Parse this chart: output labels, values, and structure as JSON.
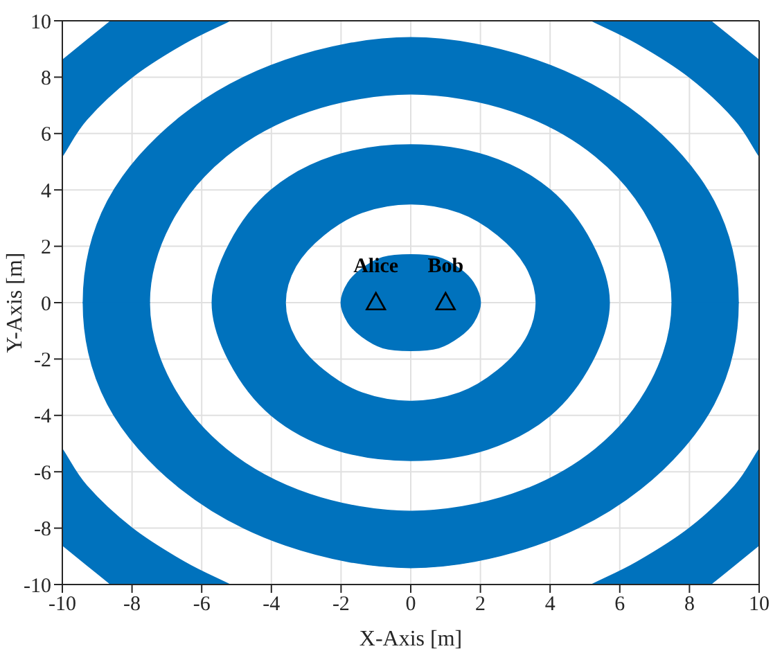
{
  "chart_data": {
    "type": "area",
    "xlabel": "X-Axis [m]",
    "ylabel": "Y-Axis [m]",
    "xlim": [
      -10,
      10
    ],
    "ylim": [
      -10,
      10
    ],
    "xticks": [
      -10,
      -8,
      -6,
      -4,
      -2,
      0,
      2,
      4,
      6,
      8,
      10
    ],
    "yticks": [
      -10,
      -8,
      -6,
      -4,
      -2,
      0,
      2,
      4,
      6,
      8,
      10
    ],
    "grid": true,
    "annotations": [
      {
        "text": "Alice",
        "x": -1,
        "y": 0
      },
      {
        "text": "Bob",
        "x": 1,
        "y": 0
      }
    ],
    "series": [
      {
        "color": "#0072bd",
        "x": [
          5.7,
          5.2,
          4,
          2.2,
          0,
          -2.2,
          -4,
          -5.2,
          -5.7,
          -5.2,
          -4,
          -2.2,
          0,
          2.2,
          4,
          5.2,
          null,
          3.6,
          3.3,
          2.5,
          1.4,
          0,
          -1.4,
          -2.5,
          -3.3,
          -3.6,
          -3.3,
          -2.5,
          -1.4,
          0,
          1.4,
          2.5,
          3.3
        ],
        "values": [
          0,
          2.1,
          4,
          5.2,
          5.6,
          5.2,
          4,
          2.1,
          0,
          -2.1,
          -4,
          -5.2,
          -5.6,
          -5.2,
          -4,
          -2.1,
          null,
          0,
          1.3,
          2.4,
          3.2,
          3.5,
          3.2,
          2.4,
          1.3,
          0,
          -1.3,
          -2.4,
          -3.2,
          -3.5,
          -3.2,
          -2.4,
          -1.3
        ]
      },
      {
        "color": "#0072bd",
        "x": [
          10,
          9.3,
          8,
          6.5,
          5.2,
          8.6,
          9.3,
          10
        ],
        "values": [
          5.2,
          6.5,
          8,
          9.2,
          10,
          10,
          9.3,
          8.6
        ]
      },
      {
        "color": "#0072bd",
        "x": [
          -10,
          -9.3,
          -8,
          -6.5,
          -5.2,
          -8.6,
          -9.3,
          -10
        ],
        "values": [
          5.2,
          6.5,
          8,
          9.2,
          10,
          10,
          9.3,
          8.6
        ]
      },
      {
        "color": "#0072bd",
        "x": [
          10,
          9.3,
          8,
          6.5,
          5.2,
          8.6,
          9.3,
          10
        ],
        "values": [
          -5.2,
          -6.5,
          -8,
          -9.2,
          -10,
          -10,
          -9.3,
          -8.6
        ]
      },
      {
        "color": "#0072bd",
        "x": [
          -10,
          -9.3,
          -8,
          -6.5,
          -5.2,
          -8.6,
          -9.3,
          -10
        ],
        "values": [
          -5.2,
          -6.5,
          -8,
          -9.2,
          -10,
          -10,
          -9.3,
          -8.6
        ]
      },
      {
        "color": "#0072bd",
        "x": [
          9.4,
          8.7,
          6.6,
          3.6,
          0,
          -3.6,
          -6.6,
          -8.7,
          -9.4,
          -7.5,
          -6.9,
          -5.3,
          -2.9,
          0,
          2.9,
          5.3,
          6.9,
          7.5
        ],
        "values": [
          0,
          3.6,
          6.6,
          8.6,
          9.4,
          8.6,
          6.6,
          3.6,
          0,
          0,
          2.8,
          5.2,
          6.8,
          7.4,
          6.8,
          5.2,
          2.8,
          0
        ]
      },
      {
        "color": "#0072bd",
        "x": [
          -9.4,
          -8.7,
          -6.6,
          -3.6,
          0,
          3.6,
          6.6,
          8.7,
          9.4,
          7.5,
          6.9,
          5.3,
          2.9,
          0,
          -2.9,
          -5.3,
          -6.9,
          -7.5
        ],
        "values": [
          0,
          -3.6,
          -6.6,
          -8.6,
          -9.4,
          -8.6,
          -6.6,
          -3.6,
          0,
          0,
          -2.8,
          -5.2,
          -6.8,
          -7.4,
          -6.8,
          -5.2,
          -2.8,
          0
        ]
      },
      {
        "color": "#0072bd",
        "x": [
          2,
          1.8,
          1.4,
          0.8,
          0,
          -0.8,
          -1.4,
          -1.8,
          -2,
          -1.8,
          -1.4,
          -0.8,
          0,
          0.8,
          1.4,
          1.8
        ],
        "values": [
          0,
          0.7,
          1.2,
          1.6,
          1.7,
          1.6,
          1.2,
          0.7,
          0,
          -0.7,
          -1.2,
          -1.6,
          -1.7,
          -1.6,
          -1.2,
          -0.7
        ]
      },
      {
        "type": "scatter",
        "color": "#000000",
        "marker": "triangle",
        "x": [
          -1,
          1
        ],
        "values": [
          0,
          0
        ]
      }
    ]
  }
}
